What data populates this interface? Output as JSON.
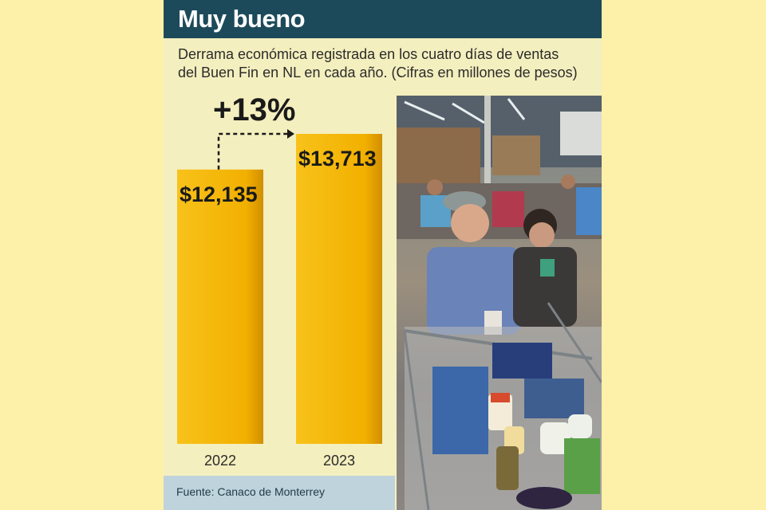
{
  "header": {
    "title": "Muy bueno"
  },
  "subtitle": {
    "line1": "Derrama económica registrada en los cuatro días de ventas",
    "line2": "del Buen Fin en NL en cada año.  (Cifras en millones de pesos)"
  },
  "source": "Fuente: Canaco de Monterrey",
  "colors": {
    "bar": "#f5b400",
    "header": "#1d4a5a",
    "footer": "#bfd3dc",
    "page": "#fdf0a8",
    "card": "#f4efbe"
  },
  "chart_data": {
    "type": "bar",
    "title": "",
    "xlabel": "",
    "ylabel": "",
    "categories": [
      "2022",
      "2023"
    ],
    "values": [
      12135,
      13713
    ],
    "value_labels": [
      "$12,135",
      "$13,713"
    ],
    "change_label": "+13%",
    "ylim": [
      0,
      13713
    ]
  },
  "photo": {
    "icon": "shoppers-photo"
  }
}
